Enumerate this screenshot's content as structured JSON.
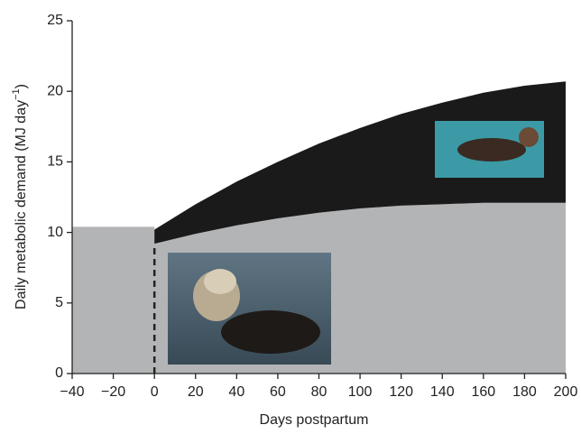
{
  "chart_data": {
    "type": "stacked-area",
    "xlabel": "Days postpartum",
    "ylabel": [
      "Daily metabolic demand (MJ day",
      "−1",
      ")"
    ],
    "xlim": [
      -40,
      200
    ],
    "xticks": [
      {
        "value": -40,
        "label": "−40"
      },
      {
        "value": -20,
        "label": "−20"
      },
      0,
      20,
      40,
      60,
      80,
      100,
      120,
      140,
      160,
      180,
      200
    ],
    "ylim": [
      0,
      25
    ],
    "yticks": [
      0,
      5,
      10,
      15,
      20,
      25
    ],
    "vline": 0,
    "series": [
      {
        "color": "#b3b4b6",
        "x": [
          -40,
          0,
          0,
          20,
          40,
          60,
          80,
          100,
          120,
          140,
          160,
          180,
          200
        ],
        "values": [
          10.4,
          10.4,
          9.2,
          9.9,
          10.5,
          11.0,
          11.4,
          11.7,
          11.9,
          12.0,
          12.1,
          12.1,
          12.1
        ]
      },
      {
        "color": "#1a1a1a",
        "x": [
          0,
          20,
          40,
          60,
          80,
          100,
          120,
          140,
          160,
          180,
          200
        ],
        "values": [
          1.0,
          2.1,
          3.1,
          4.0,
          4.9,
          5.7,
          6.5,
          7.2,
          7.8,
          8.3,
          8.6
        ]
      }
    ]
  }
}
